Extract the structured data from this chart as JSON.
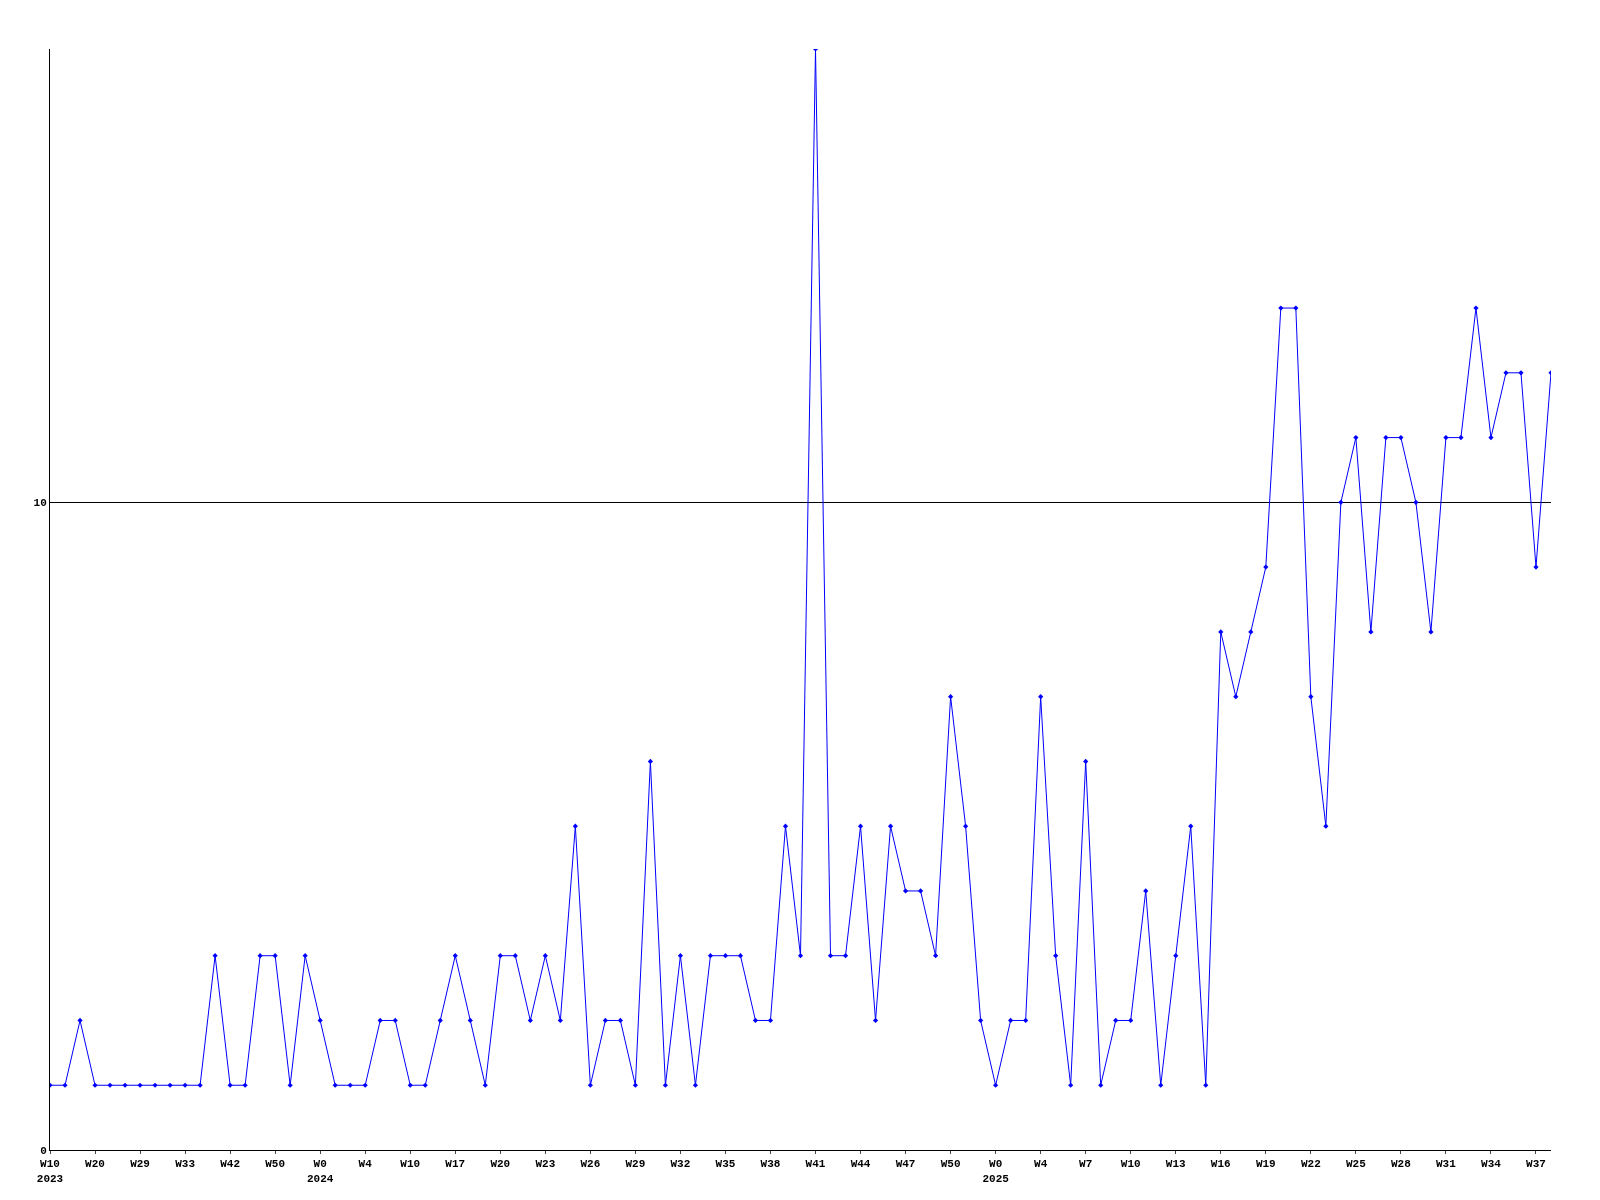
{
  "chart_data": {
    "type": "line",
    "color": "#0000ff",
    "marker": "diamond",
    "grid": "y",
    "categories": [
      "W10\n2023",
      null,
      null,
      "W20",
      null,
      null,
      "W29",
      null,
      null,
      "W33",
      null,
      null,
      "W42",
      null,
      null,
      "W50",
      null,
      null,
      "W0\n2024",
      null,
      null,
      "W4",
      null,
      null,
      "W10",
      null,
      null,
      "W17",
      null,
      null,
      "W20",
      null,
      null,
      "W23",
      null,
      null,
      "W26",
      null,
      null,
      "W29",
      null,
      null,
      "W32",
      null,
      null,
      "W35",
      null,
      null,
      "W38",
      null,
      null,
      "W41",
      null,
      null,
      "W44",
      null,
      null,
      "W47",
      null,
      null,
      "W50",
      null,
      null,
      "W0\n2025",
      null,
      null,
      "W4",
      null,
      null,
      "W7",
      null,
      null,
      "W10",
      null,
      null,
      "W13",
      null,
      null,
      "W16",
      null,
      null,
      "W19",
      null,
      null,
      "W22",
      null,
      null,
      "W25",
      null,
      null,
      "W28",
      null,
      null,
      "W31",
      null,
      null,
      "W34",
      null,
      null,
      "W37",
      null
    ],
    "values": [
      1,
      1,
      2,
      1,
      1,
      1,
      1,
      1,
      1,
      1,
      1,
      3,
      1,
      1,
      3,
      3,
      1,
      3,
      2,
      1,
      1,
      1,
      2,
      2,
      1,
      1,
      2,
      3,
      2,
      1,
      3,
      3,
      2,
      3,
      2,
      5,
      1,
      2,
      2,
      1,
      6,
      1,
      3,
      1,
      3,
      3,
      3,
      2,
      2,
      5,
      3,
      17,
      3,
      3,
      5,
      2,
      5,
      4,
      4,
      3,
      7,
      5,
      2,
      1,
      2,
      2,
      7,
      3,
      1,
      6,
      1,
      2,
      2,
      4,
      1,
      3,
      5,
      1,
      8,
      7,
      8,
      9,
      13,
      13,
      7,
      5,
      10,
      11,
      8,
      11,
      11,
      10,
      8,
      11,
      11,
      13,
      11,
      12,
      12,
      9,
      12
    ],
    "ylim": [
      0,
      17
    ],
    "yticks": [
      0,
      10
    ]
  }
}
